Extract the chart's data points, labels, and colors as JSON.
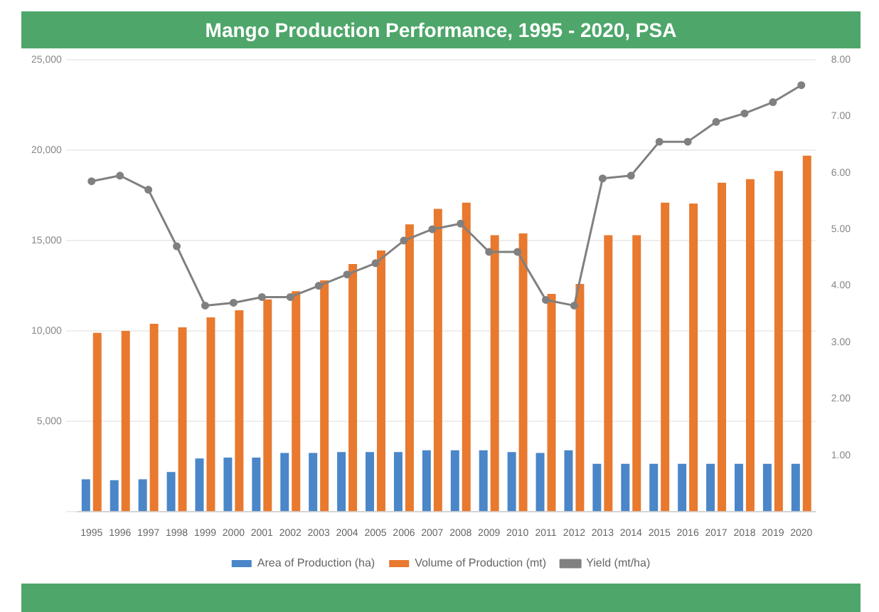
{
  "chart_data": {
    "type": "bar",
    "title": "Mango Production Performance, 1995 - 2020, PSA",
    "categories": [
      "1995",
      "1996",
      "1997",
      "1998",
      "1999",
      "2000",
      "2001",
      "2002",
      "2003",
      "2004",
      "2005",
      "2006",
      "2007",
      "2008",
      "2009",
      "2010",
      "2011",
      "2012",
      "2013",
      "2014",
      "2015",
      "2016",
      "2017",
      "2018",
      "2019",
      "2020"
    ],
    "series": [
      {
        "name": "Area of Production (ha)",
        "color": "#4a86c8",
        "values": [
          1800,
          1750,
          1800,
          2200,
          2950,
          3000,
          3000,
          3250,
          3250,
          3300,
          3300,
          3300,
          3400,
          3400,
          3400,
          3300,
          3250,
          3400,
          2650,
          2650,
          2650,
          2650,
          2650,
          2650,
          2650,
          2650
        ]
      },
      {
        "name": "Volume of Production (mt)",
        "color": "#e8792e",
        "values": [
          9900,
          10000,
          10400,
          10200,
          10750,
          11150,
          11750,
          12200,
          12800,
          13700,
          14450,
          15900,
          16750,
          17100,
          15300,
          15400,
          12050,
          12600,
          15300,
          15300,
          17100,
          17050,
          18200,
          18400,
          18850,
          19700
        ]
      },
      {
        "name": "Yield (mt/ha)",
        "type": "line",
        "axis": "y2",
        "color": "#808080",
        "values": [
          5.85,
          5.95,
          5.7,
          4.7,
          3.65,
          3.7,
          3.8,
          3.8,
          4.0,
          4.2,
          4.4,
          4.8,
          5.0,
          5.1,
          4.6,
          4.6,
          3.75,
          3.65,
          5.9,
          5.95,
          6.55,
          6.55,
          6.9,
          7.05,
          7.25,
          7.55
        ]
      }
    ],
    "ylim": [
      0,
      25000
    ],
    "yticks": [
      {
        "value": 0,
        "label": null
      },
      {
        "value": 5000,
        "label": "5,000"
      },
      {
        "value": 10000,
        "label": "10,000"
      },
      {
        "value": 15000,
        "label": "15,000"
      },
      {
        "value": 20000,
        "label": "20,000"
      },
      {
        "value": 25000,
        "label": "25,000"
      }
    ],
    "y2lim": [
      0,
      8
    ],
    "y2ticks": [
      {
        "value": 0,
        "label": null
      },
      {
        "value": 1,
        "label": "1.00"
      },
      {
        "value": 2,
        "label": "2.00"
      },
      {
        "value": 3,
        "label": "3.00"
      },
      {
        "value": 4,
        "label": "4.00"
      },
      {
        "value": 5,
        "label": "5.00"
      },
      {
        "value": 6,
        "label": "6.00"
      },
      {
        "value": 7,
        "label": "7.00"
      },
      {
        "value": 8,
        "label": "8.00"
      }
    ],
    "grid": "y",
    "legend": "bottom",
    "marker": "circle"
  }
}
